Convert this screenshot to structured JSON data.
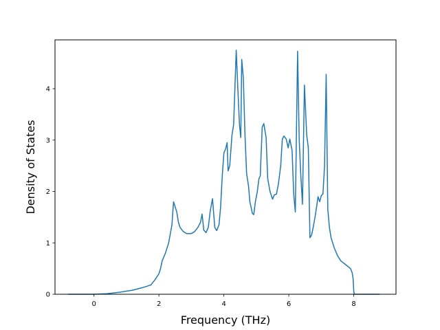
{
  "chart_data": {
    "type": "line",
    "title": "",
    "xlabel": "Frequency (THz)",
    "ylabel": "Density of States",
    "xlim": [
      -1.2,
      9.3
    ],
    "ylim": [
      0,
      4.95
    ],
    "xticks": [
      0,
      2,
      4,
      6,
      8
    ],
    "yticks": [
      0,
      1,
      2,
      3,
      4
    ],
    "grid": false,
    "legend": "none",
    "series": [
      {
        "color": "#1f77b4",
        "x": [
          -0.8,
          0.0,
          0.4,
          0.8,
          1.2,
          1.5,
          1.75,
          1.9,
          2.0,
          2.05,
          2.1,
          2.2,
          2.3,
          2.4,
          2.45,
          2.55,
          2.6,
          2.65,
          2.75,
          2.85,
          3.0,
          3.1,
          3.2,
          3.28,
          3.33,
          3.38,
          3.45,
          3.52,
          3.58,
          3.65,
          3.72,
          3.78,
          3.85,
          3.9,
          3.95,
          4.0,
          4.05,
          4.1,
          4.13,
          4.18,
          4.25,
          4.3,
          4.35,
          4.38,
          4.42,
          4.48,
          4.52,
          4.55,
          4.6,
          4.65,
          4.7,
          4.76,
          4.8,
          4.88,
          4.92,
          4.97,
          5.03,
          5.08,
          5.12,
          5.18,
          5.23,
          5.3,
          5.35,
          5.42,
          5.5,
          5.55,
          5.62,
          5.68,
          5.75,
          5.8,
          5.85,
          5.92,
          5.98,
          6.03,
          6.1,
          6.15,
          6.2,
          6.27,
          6.32,
          6.37,
          6.42,
          6.48,
          6.55,
          6.6,
          6.65,
          6.7,
          6.75,
          6.82,
          6.9,
          6.95,
          7.0,
          7.05,
          7.1,
          7.15,
          7.2,
          7.25,
          7.3,
          7.4,
          7.5,
          7.6,
          7.7,
          7.8,
          7.9,
          7.95,
          7.98,
          8.0,
          8.02,
          8.4,
          8.8
        ],
        "y": [
          0.0,
          0.0,
          0.01,
          0.04,
          0.08,
          0.13,
          0.18,
          0.3,
          0.4,
          0.5,
          0.65,
          0.8,
          1.0,
          1.35,
          1.8,
          1.6,
          1.4,
          1.3,
          1.22,
          1.18,
          1.18,
          1.22,
          1.3,
          1.4,
          1.56,
          1.25,
          1.2,
          1.3,
          1.62,
          1.86,
          1.3,
          1.24,
          1.35,
          1.7,
          2.3,
          2.75,
          2.82,
          2.95,
          2.4,
          2.5,
          3.1,
          3.3,
          4.2,
          4.75,
          4.15,
          3.3,
          3.05,
          4.57,
          4.2,
          3.1,
          2.35,
          2.1,
          1.8,
          1.57,
          1.55,
          1.8,
          2.0,
          2.25,
          2.3,
          3.25,
          3.32,
          3.05,
          2.25,
          2.0,
          1.85,
          1.93,
          1.95,
          2.15,
          2.5,
          3.02,
          3.08,
          3.02,
          2.85,
          3.02,
          2.8,
          1.95,
          1.6,
          4.73,
          3.0,
          2.3,
          1.75,
          4.07,
          3.1,
          2.85,
          1.1,
          1.15,
          1.3,
          1.55,
          1.9,
          1.8,
          1.92,
          1.95,
          2.5,
          4.28,
          1.65,
          1.3,
          1.1,
          0.9,
          0.75,
          0.65,
          0.6,
          0.55,
          0.5,
          0.42,
          0.3,
          0.05,
          0.0,
          0.0,
          0.0
        ]
      }
    ]
  }
}
